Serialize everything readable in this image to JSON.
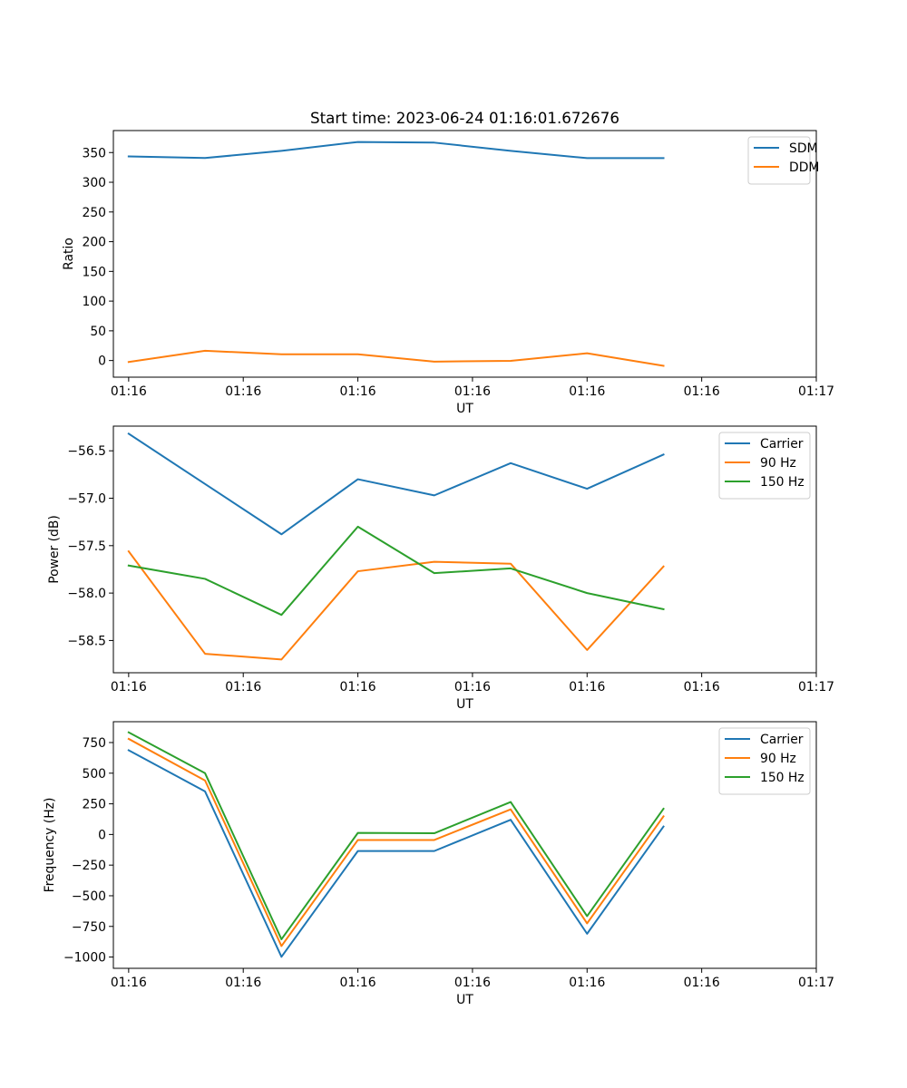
{
  "chart_data": [
    {
      "type": "line",
      "title": "Start time: 2023-06-24 01:16:01.672676",
      "xlabel": "UT",
      "ylabel": "Ratio",
      "x": [
        1,
        2,
        3,
        4,
        5,
        6,
        7,
        8
      ],
      "xlim": [
        0.8,
        10.0
      ],
      "x_ticks": [
        1,
        2.5,
        4,
        5.5,
        7,
        8.5,
        10
      ],
      "x_tick_labels": [
        "01:16",
        "01:16",
        "01:16",
        "01:16",
        "01:16",
        "01:16",
        "01:17"
      ],
      "ylim": [
        -28,
        387
      ],
      "y_ticks": [
        0,
        50,
        100,
        150,
        200,
        250,
        300,
        350
      ],
      "legend": "top-right",
      "grid": false,
      "series": [
        {
          "name": "SDM",
          "color": "#1f77b4",
          "values": [
            343.5,
            340.8,
            352.9,
            367.8,
            366.7,
            352.9,
            340.6,
            340.6
          ]
        },
        {
          "name": "DDM",
          "color": "#ff7f0e",
          "values": [
            -2.5,
            16.4,
            10.5,
            10.5,
            -1.8,
            -0.5,
            12.2,
            -8.8
          ]
        }
      ]
    },
    {
      "type": "line",
      "title": "",
      "xlabel": "UT",
      "ylabel": "Power (dB)",
      "x": [
        1,
        2,
        3,
        4,
        5,
        6,
        7,
        8
      ],
      "xlim": [
        0.8,
        10.0
      ],
      "x_ticks": [
        1,
        2.5,
        4,
        5.5,
        7,
        8.5,
        10
      ],
      "x_tick_labels": [
        "01:16",
        "01:16",
        "01:16",
        "01:16",
        "01:16",
        "01:16",
        "01:17"
      ],
      "ylim": [
        -58.84,
        -56.24
      ],
      "y_ticks": [
        -58.5,
        -58.0,
        -57.5,
        -57.0,
        -56.5
      ],
      "y_tick_labels": [
        "−58.5",
        "−58.0",
        "−57.5",
        "−57.0",
        "−56.5"
      ],
      "legend": "top-right",
      "grid": false,
      "series": [
        {
          "name": "Carrier",
          "color": "#1f77b4",
          "values": [
            -56.32,
            -56.85,
            -57.38,
            -56.8,
            -56.97,
            -56.63,
            -56.9,
            -56.54
          ]
        },
        {
          "name": "90 Hz",
          "color": "#ff7f0e",
          "values": [
            -57.56,
            -58.64,
            -58.7,
            -57.77,
            -57.67,
            -57.69,
            -58.6,
            -57.72
          ]
        },
        {
          "name": "150 Hz",
          "color": "#2ca02c",
          "values": [
            -57.71,
            -57.85,
            -58.23,
            -57.3,
            -57.79,
            -57.74,
            -58.0,
            -58.17
          ]
        }
      ]
    },
    {
      "type": "line",
      "title": "",
      "xlabel": "UT",
      "ylabel": "Frequency (Hz)",
      "x": [
        1,
        2,
        3,
        4,
        5,
        6,
        7,
        8
      ],
      "xlim": [
        0.8,
        10.0
      ],
      "x_ticks": [
        1,
        2.5,
        4,
        5.5,
        7,
        8.5,
        10
      ],
      "x_tick_labels": [
        "01:16",
        "01:16",
        "01:16",
        "01:16",
        "01:16",
        "01:16",
        "01:17"
      ],
      "ylim": [
        -1092,
        920
      ],
      "y_ticks": [
        -1000,
        -750,
        -500,
        -250,
        0,
        250,
        500,
        750
      ],
      "y_tick_labels": [
        "−1000",
        "−750",
        "−500",
        "−250",
        "0",
        "250",
        "500",
        "750"
      ],
      "legend": "top-right",
      "grid": false,
      "series": [
        {
          "name": "Carrier",
          "color": "#1f77b4",
          "values": [
            687,
            351,
            -998,
            -135,
            -135,
            120,
            -810,
            65
          ]
        },
        {
          "name": "90 Hz",
          "color": "#ff7f0e",
          "values": [
            780,
            440,
            -910,
            -45,
            -45,
            205,
            -725,
            148
          ]
        },
        {
          "name": "150 Hz",
          "color": "#2ca02c",
          "values": [
            833,
            500,
            -855,
            13,
            10,
            265,
            -666,
            210
          ]
        }
      ]
    }
  ]
}
